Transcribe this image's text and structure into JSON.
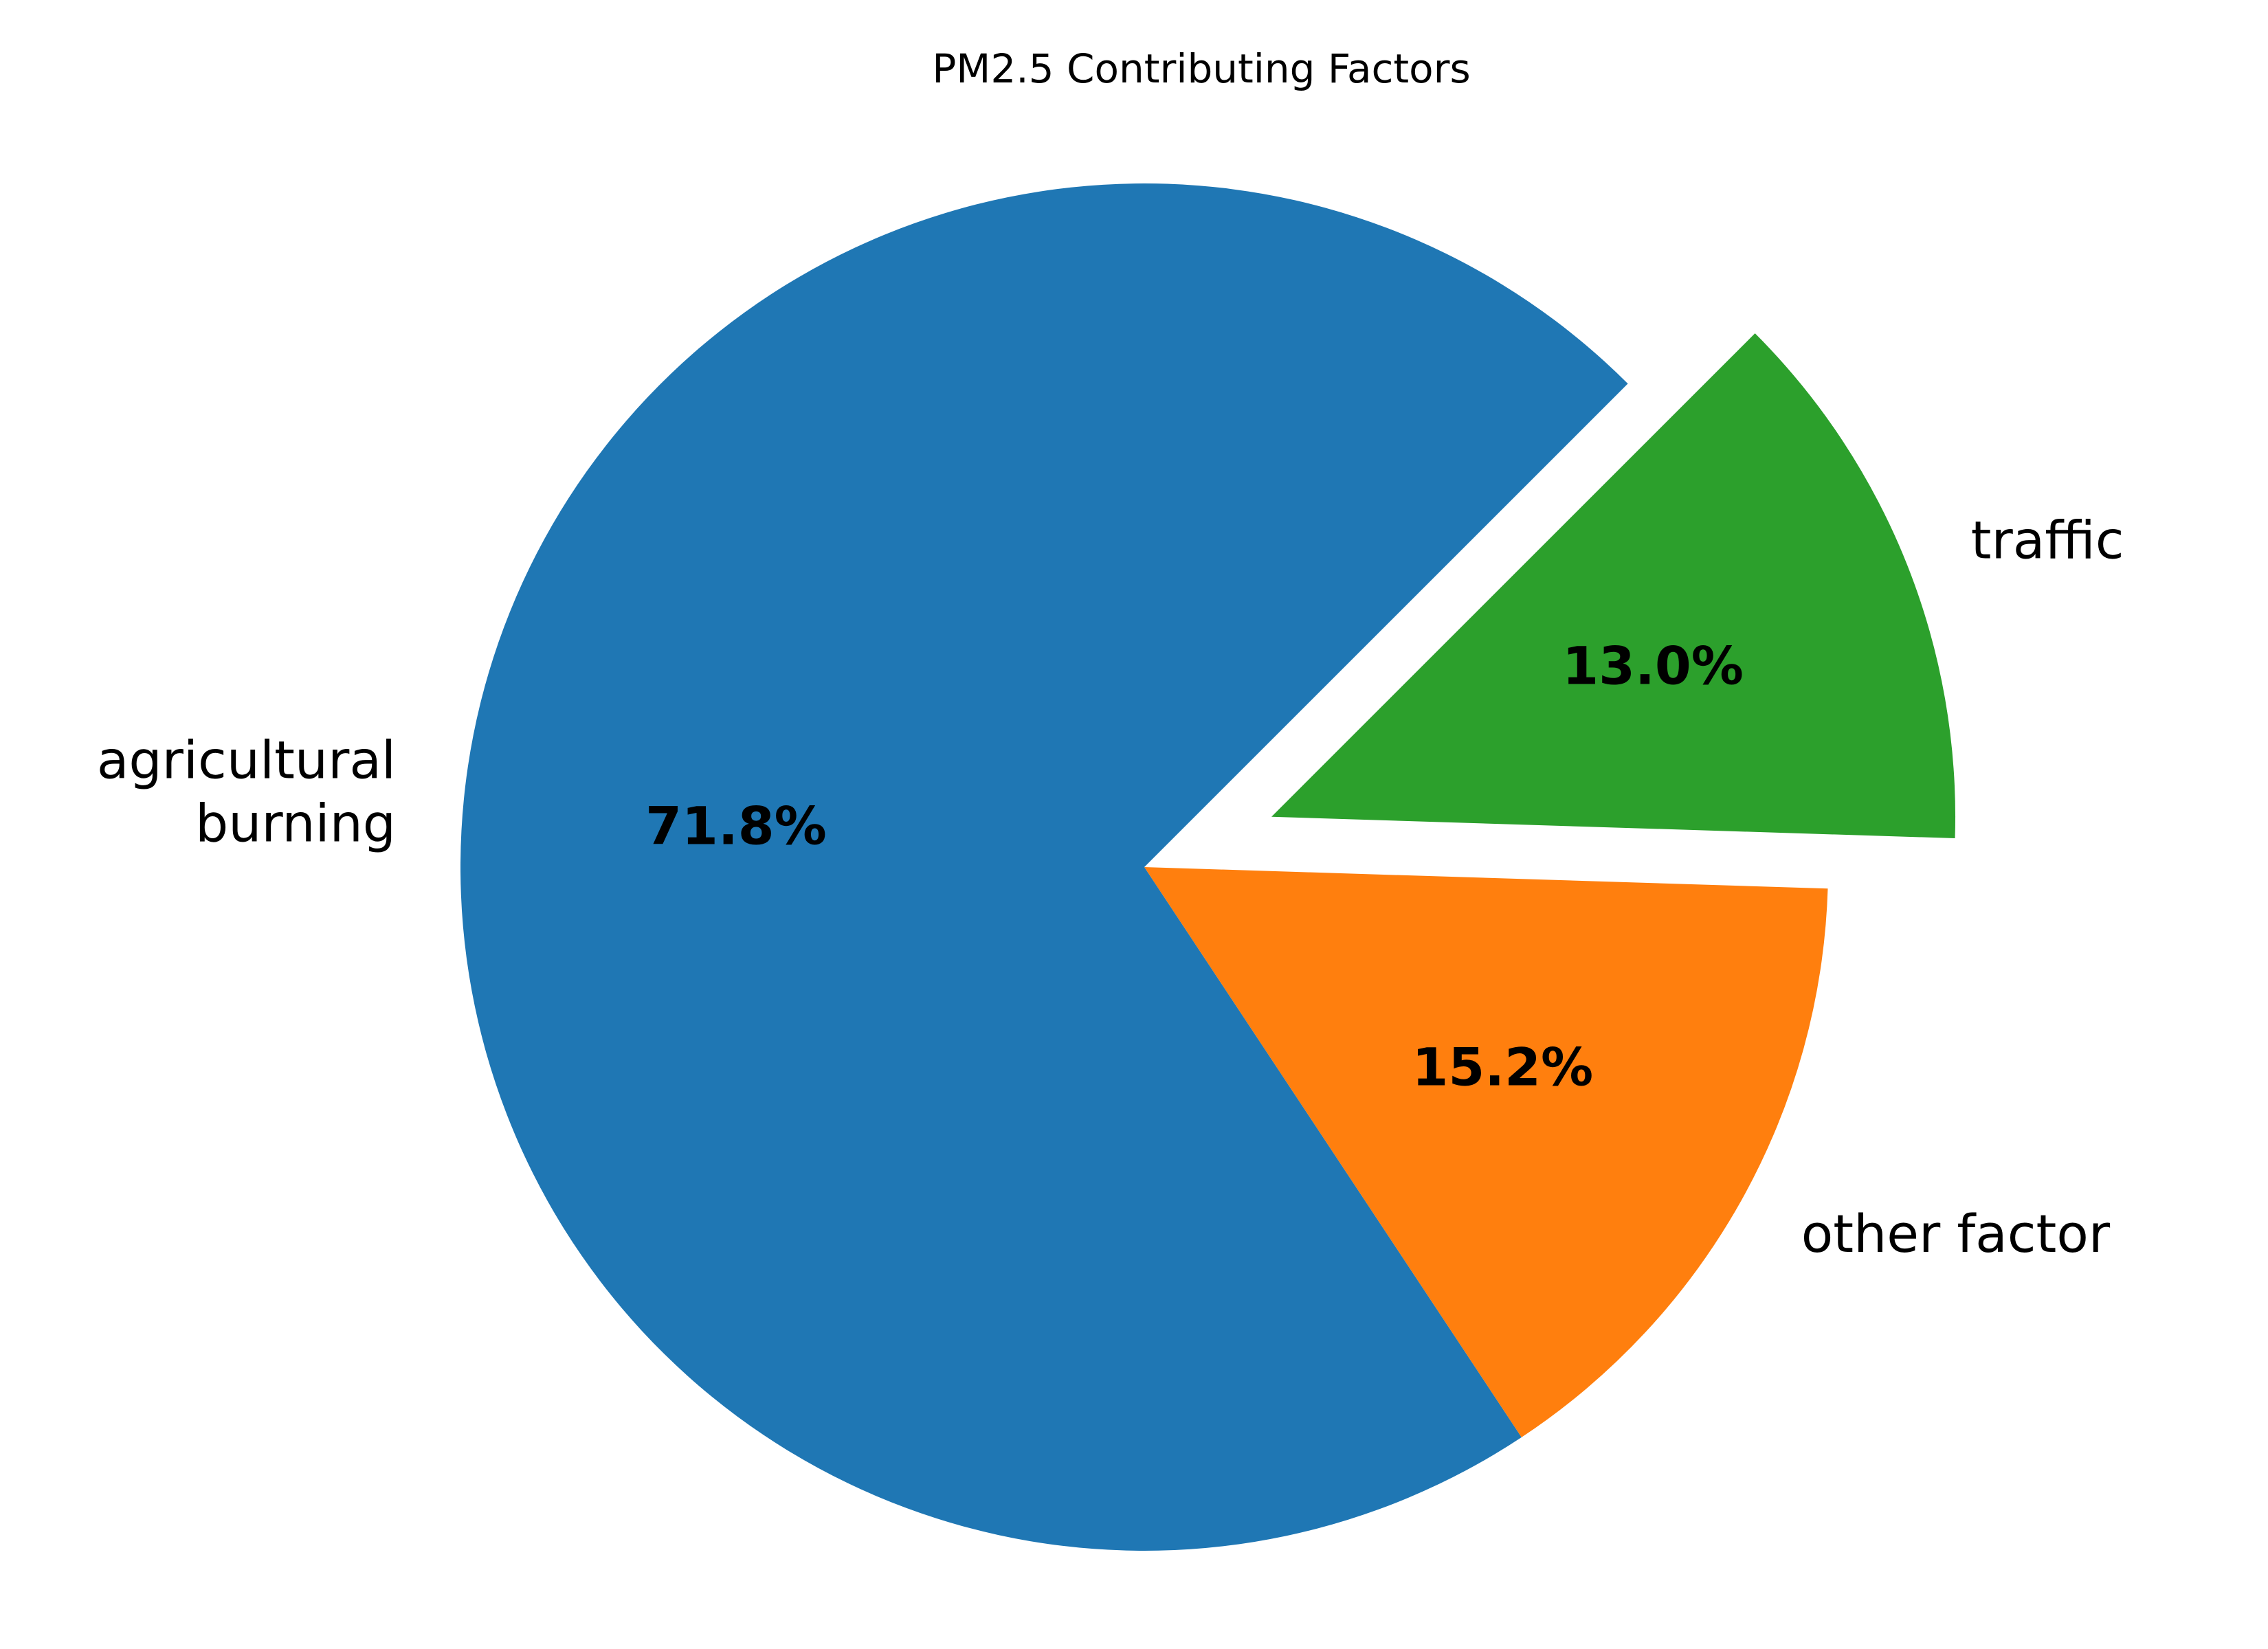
{
  "chart_data": {
    "type": "pie",
    "title": "PM2.5 Contributing Factors",
    "start_angle_deg": 45,
    "direction": "counterclockwise",
    "slices": [
      {
        "label_lines": [
          "agricultural",
          "burning"
        ],
        "value": 71.8,
        "pct_label": "71.8%",
        "color": "#1f77b4",
        "exploded": false
      },
      {
        "label_lines": [
          "other factor"
        ],
        "value": 15.2,
        "pct_label": "15.2%",
        "color": "#ff7f0e",
        "exploded": false
      },
      {
        "label_lines": [
          "traffic"
        ],
        "value": 13.0,
        "pct_label": "13.0%",
        "color": "#2ca02c",
        "exploded": true
      }
    ]
  }
}
